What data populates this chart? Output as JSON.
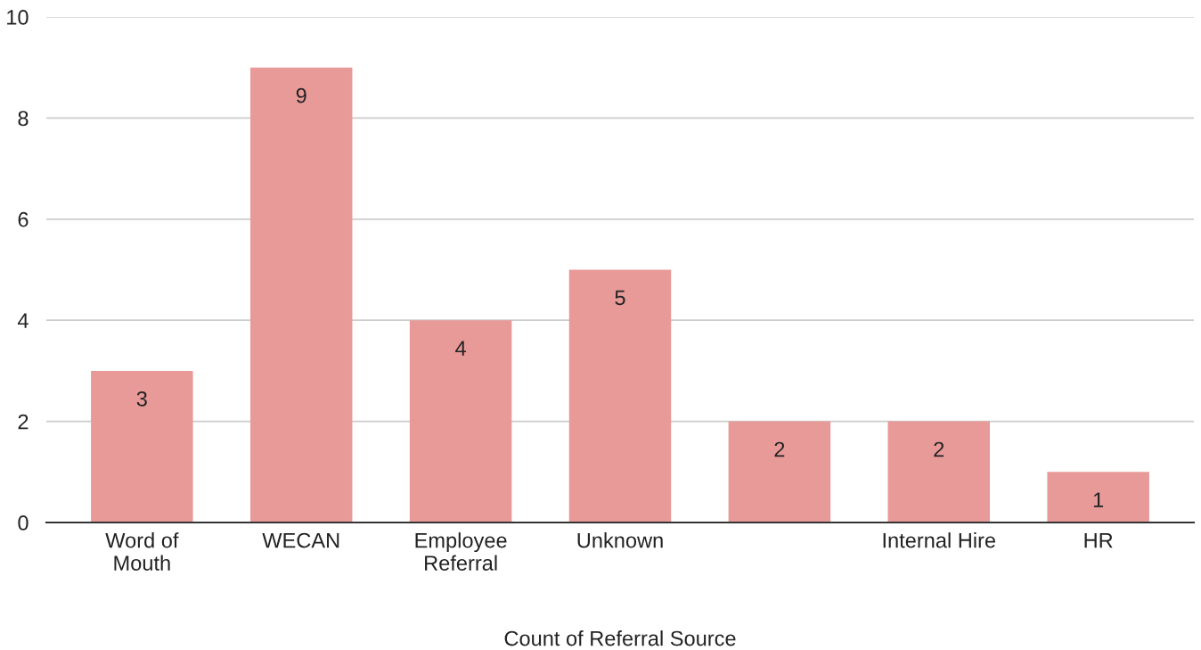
{
  "chart_data": {
    "type": "bar",
    "xlabel": "Count of Referral Source",
    "categories": [
      "Word of\nMouth",
      "WECAN",
      "Employee\nReferral",
      "Unknown",
      null,
      "Internal Hire",
      "HR"
    ],
    "values": [
      3,
      9,
      4,
      5,
      2,
      2,
      1
    ],
    "color": "#e89a98",
    "ylim": [
      0,
      10
    ],
    "yticks": [
      0,
      2,
      4,
      6,
      8,
      10
    ],
    "grid": "y",
    "data_labels": true
  }
}
